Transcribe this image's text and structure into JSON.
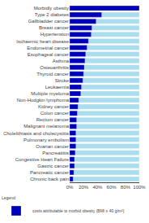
{
  "chart_data": {
    "type": "bar",
    "orientation": "horizontal",
    "categories": [
      "Morbidly obesity",
      "Type 2 diabetes",
      "Gallbladder cancer",
      "Breast cancer",
      "Hypertension",
      "Ischaemic heart disease",
      "Endometrial cancer",
      "Esophageal cancer",
      "Asthma",
      "Osteoarthritis",
      "Thyroid cancer",
      "Stroke",
      "Leukaemia",
      "Multiple myeloma",
      "Non-Hodgkin lymphoma",
      "Kidney cancer",
      "Colon cancer",
      "Rectum cancer",
      "Malignant melanoma",
      "Cholelithiasis and cholecystitis",
      "Pulmonary embolism",
      "Ovarian cancer",
      "Pancreatiitis",
      "Congestive Heart Failure",
      "Gastric cancer",
      "Pancreatic cancer",
      "Chronic back pain"
    ],
    "series": [
      {
        "color": "#AADDEE",
        "values": [
          100,
          100,
          100,
          100,
          100,
          100,
          100,
          100,
          100,
          100,
          100,
          100,
          100,
          100,
          100,
          100,
          100,
          100,
          100,
          100,
          100,
          100,
          100,
          100,
          100,
          100,
          100
        ]
      },
      {
        "name": "costs attributable to morbid obesity (BMI ≥ 40 g/m²)",
        "color": "#0000BB",
        "values": [
          100,
          46,
          38,
          32,
          31,
          27,
          25,
          23,
          22,
          21,
          20,
          19,
          17,
          16,
          13,
          12,
          11,
          10,
          10,
          9,
          9,
          9,
          8,
          7,
          7,
          6,
          5
        ]
      }
    ],
    "xlim": [
      0,
      100
    ],
    "xticks": [
      {
        "value": 0,
        "label": "0%"
      },
      {
        "value": 20,
        "label": "20%"
      },
      {
        "value": 40,
        "label": "40%"
      },
      {
        "value": 60,
        "label": "60%"
      },
      {
        "value": 80,
        "label": "80%"
      },
      {
        "value": 100,
        "label": "100%"
      }
    ],
    "grid": true,
    "legend": "bottom",
    "annotations": [
      {
        "text": "Legend:"
      }
    ]
  }
}
